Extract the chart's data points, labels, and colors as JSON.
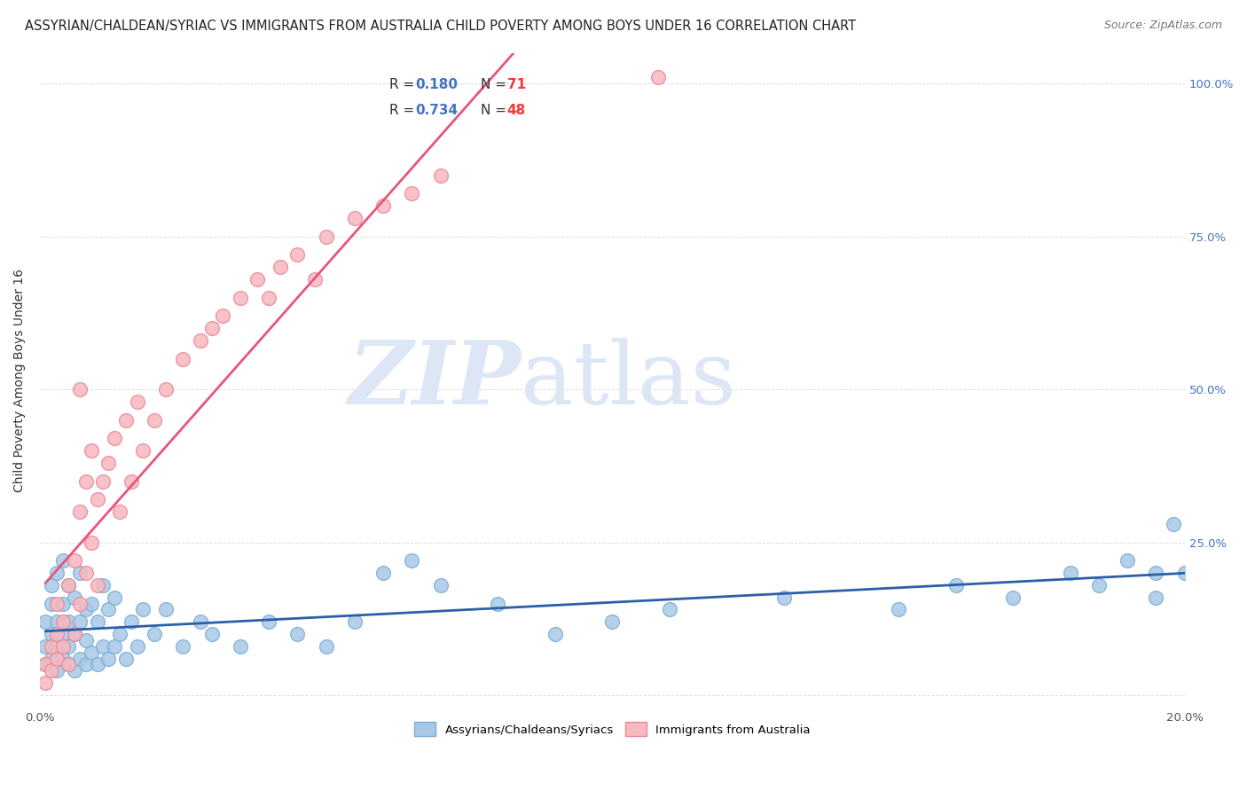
{
  "title": "ASSYRIAN/CHALDEAN/SYRIAC VS IMMIGRANTS FROM AUSTRALIA CHILD POVERTY AMONG BOYS UNDER 16 CORRELATION CHART",
  "source": "Source: ZipAtlas.com",
  "ylabel": "Child Poverty Among Boys Under 16",
  "xlim": [
    0.0,
    0.2
  ],
  "ylim": [
    -0.02,
    1.05
  ],
  "yticks": [
    0.0,
    0.25,
    0.5,
    0.75,
    1.0
  ],
  "ytick_labels_right": [
    "",
    "25.0%",
    "50.0%",
    "75.0%",
    "100.0%"
  ],
  "xticks": [
    0.0,
    0.05,
    0.1,
    0.15,
    0.2
  ],
  "xtick_labels": [
    "0.0%",
    "",
    "",
    "",
    "20.0%"
  ],
  "watermark_zip": "ZIP",
  "watermark_atlas": "atlas",
  "watermark_color": "#dce6f5",
  "background_color": "#ffffff",
  "grid_color": "#dddddd",
  "title_fontsize": 10.5,
  "source_fontsize": 9,
  "ylabel_fontsize": 10,
  "tick_fontsize": 9.5,
  "legend_R_color": "#4472c4",
  "legend_N_color": "#ff3333",
  "blue_series": {
    "label": "Assyrians/Chaldeans/Syriacs",
    "R": 0.18,
    "N": 71,
    "scatter_color": "#a8c8e8",
    "scatter_edge": "#7aafd4",
    "line_color": "#2b5fa8",
    "line_style": "-",
    "x": [
      0.001,
      0.001,
      0.001,
      0.002,
      0.002,
      0.002,
      0.002,
      0.003,
      0.003,
      0.003,
      0.003,
      0.004,
      0.004,
      0.004,
      0.004,
      0.005,
      0.005,
      0.005,
      0.005,
      0.006,
      0.006,
      0.006,
      0.007,
      0.007,
      0.007,
      0.008,
      0.008,
      0.008,
      0.009,
      0.009,
      0.01,
      0.01,
      0.011,
      0.011,
      0.012,
      0.012,
      0.013,
      0.013,
      0.014,
      0.015,
      0.016,
      0.017,
      0.018,
      0.02,
      0.022,
      0.025,
      0.028,
      0.03,
      0.035,
      0.04,
      0.045,
      0.05,
      0.055,
      0.06,
      0.065,
      0.07,
      0.08,
      0.09,
      0.1,
      0.11,
      0.13,
      0.15,
      0.16,
      0.17,
      0.18,
      0.185,
      0.19,
      0.195,
      0.195,
      0.198,
      0.2
    ],
    "y": [
      0.08,
      0.05,
      0.12,
      0.1,
      0.06,
      0.15,
      0.18,
      0.04,
      0.08,
      0.12,
      0.2,
      0.06,
      0.1,
      0.15,
      0.22,
      0.05,
      0.08,
      0.12,
      0.18,
      0.04,
      0.1,
      0.16,
      0.06,
      0.12,
      0.2,
      0.05,
      0.09,
      0.14,
      0.07,
      0.15,
      0.05,
      0.12,
      0.08,
      0.18,
      0.06,
      0.14,
      0.08,
      0.16,
      0.1,
      0.06,
      0.12,
      0.08,
      0.14,
      0.1,
      0.14,
      0.08,
      0.12,
      0.1,
      0.08,
      0.12,
      0.1,
      0.08,
      0.12,
      0.2,
      0.22,
      0.18,
      0.15,
      0.1,
      0.12,
      0.14,
      0.16,
      0.14,
      0.18,
      0.16,
      0.2,
      0.18,
      0.22,
      0.2,
      0.16,
      0.28,
      0.2
    ]
  },
  "pink_series": {
    "label": "Immigrants from Australia",
    "R": 0.734,
    "N": 48,
    "scatter_color": "#f8b8c0",
    "scatter_edge": "#e88898",
    "line_color": "#e8557a",
    "line_style": "-",
    "x": [
      0.001,
      0.001,
      0.002,
      0.002,
      0.003,
      0.003,
      0.003,
      0.004,
      0.004,
      0.005,
      0.005,
      0.006,
      0.006,
      0.007,
      0.007,
      0.007,
      0.008,
      0.008,
      0.009,
      0.009,
      0.01,
      0.01,
      0.011,
      0.012,
      0.013,
      0.014,
      0.015,
      0.016,
      0.017,
      0.018,
      0.02,
      0.022,
      0.025,
      0.028,
      0.03,
      0.032,
      0.035,
      0.038,
      0.04,
      0.042,
      0.045,
      0.048,
      0.05,
      0.055,
      0.06,
      0.065,
      0.07,
      0.108
    ],
    "y": [
      0.02,
      0.05,
      0.04,
      0.08,
      0.06,
      0.1,
      0.15,
      0.08,
      0.12,
      0.05,
      0.18,
      0.1,
      0.22,
      0.15,
      0.3,
      0.5,
      0.2,
      0.35,
      0.25,
      0.4,
      0.18,
      0.32,
      0.35,
      0.38,
      0.42,
      0.3,
      0.45,
      0.35,
      0.48,
      0.4,
      0.45,
      0.5,
      0.55,
      0.58,
      0.6,
      0.62,
      0.65,
      0.68,
      0.65,
      0.7,
      0.72,
      0.68,
      0.75,
      0.78,
      0.8,
      0.82,
      0.85,
      1.01
    ]
  }
}
